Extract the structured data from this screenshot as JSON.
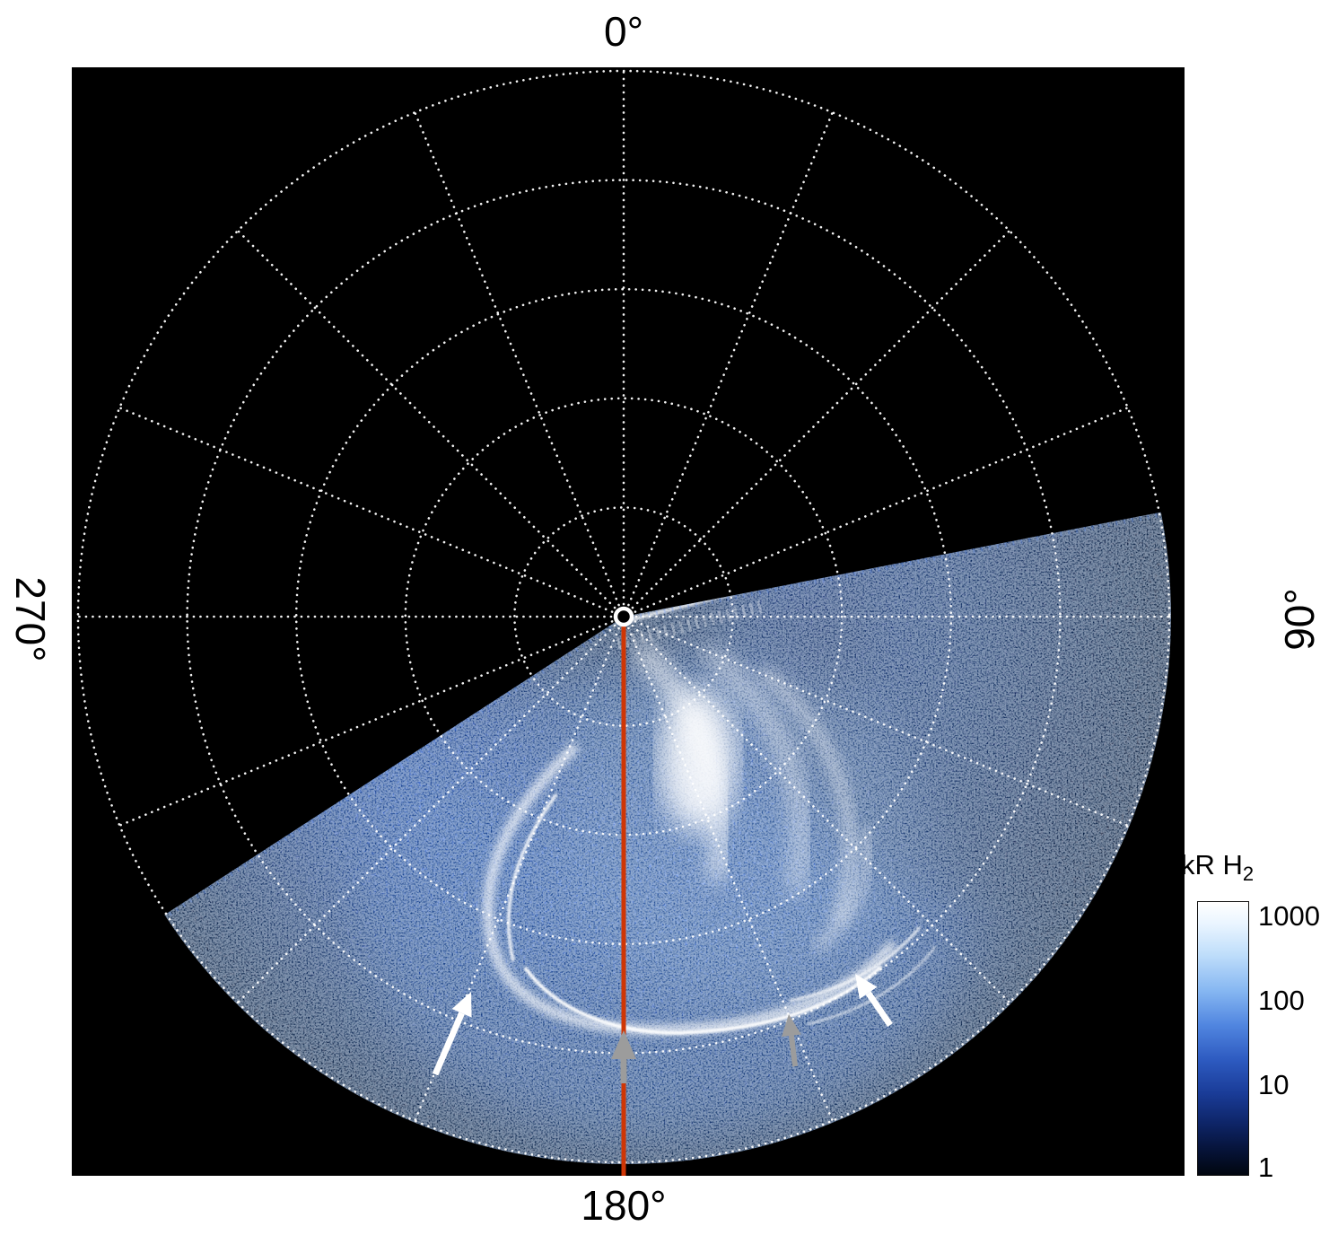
{
  "figure": {
    "angle_labels": {
      "top": "0°",
      "right": "90°",
      "bottom": "180°",
      "left": "270°"
    },
    "colorbar": {
      "title": "kR H",
      "title_sub": "2",
      "ticks": [
        "1000",
        "100",
        "10",
        "1"
      ]
    },
    "colors": {
      "background": "#ffffff",
      "plot_background": "#000000",
      "grid": "#ffffff",
      "meridian_line": "#cf3605",
      "aurora_bright": "#ffffff",
      "aurora_mid": "#1f4ec6",
      "aurora_dark": "#050e2a",
      "arrow_white": "#ffffff",
      "arrow_gray": "#9c9c9c"
    }
  },
  "chart_data": {
    "type": "heatmap",
    "projection": "polar",
    "title": "",
    "description": "Polar-projection map of ultraviolet auroral H2 emission over one hemisphere pole on a logarithmic brightness scale (1 to 1000 kR). A bright main auroral oval with multiple arc structures fills the observed sector; the unobserved sector is black. A red line marks the 180-degree meridian from the pole to the outer edge. Two white arrows and two gray arrows mark discrete auroral features near the main oval.",
    "angular_tick_labels": [
      "0°",
      "90°",
      "180°",
      "270°"
    ],
    "angular_tick_positions_deg": [
      0,
      90,
      180,
      270
    ],
    "angular_gridline_spacing_deg": 22.5,
    "radial_gridlines": 5,
    "observed_sector_deg": [
      79,
      237
    ],
    "colorbar": {
      "label": "kR H2",
      "scale": "log",
      "min": 1,
      "max": 1000,
      "tick_values": [
        1000,
        100,
        10,
        1
      ],
      "colormap": "dark-navy to blue to white"
    },
    "annotations": [
      {
        "type": "meridian-line",
        "angle_deg": 180,
        "color": "#cf3605"
      },
      {
        "type": "arrow",
        "color": "white",
        "approx_location": "lower-left of main oval"
      },
      {
        "type": "arrow",
        "color": "white",
        "approx_location": "lower-right of main oval"
      },
      {
        "type": "arrow",
        "color": "gray",
        "approx_location": "on 180-degree meridian at the oval"
      },
      {
        "type": "arrow",
        "color": "gray",
        "approx_location": "right of 180-degree meridian at the oval"
      }
    ]
  }
}
